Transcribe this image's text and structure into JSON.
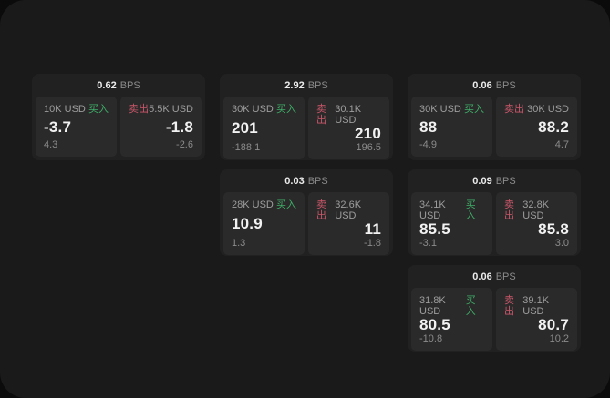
{
  "page": {
    "bps_suffix": "BPS"
  },
  "labels": {
    "buy": "买入",
    "sell": "卖出"
  },
  "colors": {
    "buy_green": "#3fae68",
    "sell_red": "#c9566a"
  },
  "cards": [
    {
      "bps": "0.62",
      "buy_size": "10K USD",
      "buy_price": "-3.7",
      "buy_sub": "4.3",
      "sell_size": "5.5K USD",
      "sell_price": "-1.8",
      "sell_sub": "-2.6"
    },
    {
      "bps": "2.92",
      "buy_size": "30K USD",
      "buy_price": "201",
      "buy_sub": "-188.1",
      "sell_size": "30.1K USD",
      "sell_price": "210",
      "sell_sub": "196.5"
    },
    {
      "bps": "0.06",
      "buy_size": "30K USD",
      "buy_price": "88",
      "buy_sub": "-4.9",
      "sell_size": "30K USD",
      "sell_price": "88.2",
      "sell_sub": "4.7"
    },
    {
      "bps": "0.03",
      "buy_size": "28K USD",
      "buy_price": "10.9",
      "buy_sub": "1.3",
      "sell_size": "32.6K USD",
      "sell_price": "11",
      "sell_sub": "-1.8"
    },
    {
      "bps": "0.09",
      "buy_size": "34.1K USD",
      "buy_price": "85.5",
      "buy_sub": "-3.1",
      "sell_size": "32.8K USD",
      "sell_price": "85.8",
      "sell_sub": "3.0"
    },
    {
      "bps": "0.06",
      "buy_size": "31.8K USD",
      "buy_price": "80.5",
      "buy_sub": "-10.8",
      "sell_size": "39.1K USD",
      "sell_price": "80.7",
      "sell_sub": "10.2"
    }
  ]
}
